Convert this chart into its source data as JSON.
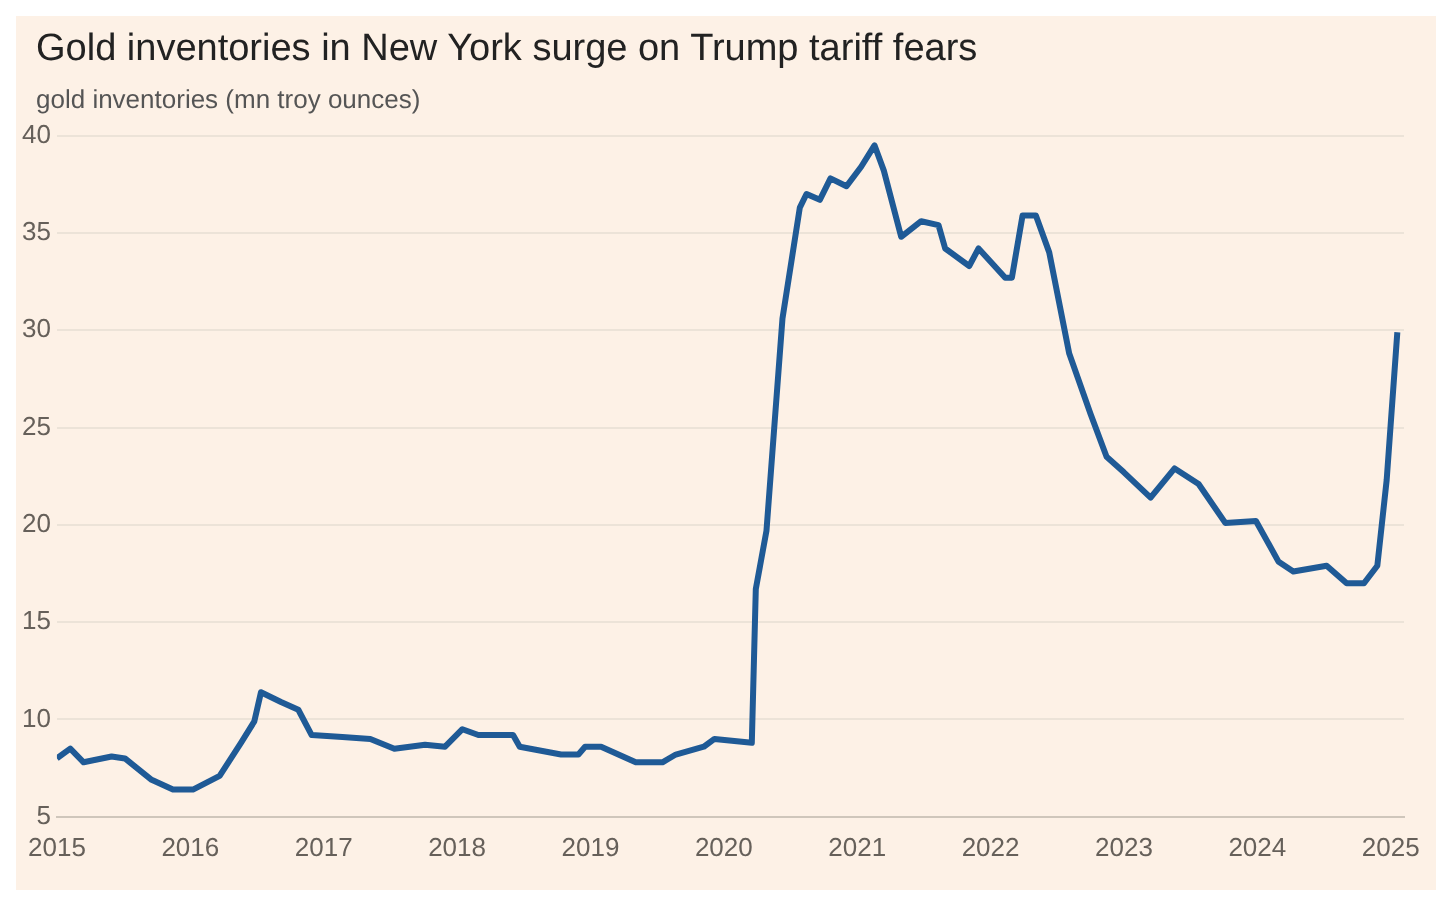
{
  "chart_data": {
    "type": "line",
    "title": "Gold inventories in New York surge on Trump tariff fears",
    "subtitle": "gold inventories (mn troy ounces)",
    "x": [
      2015.0,
      2015.1,
      2015.2,
      2015.41,
      2015.51,
      2015.71,
      2015.87,
      2016.02,
      2016.22,
      2016.38,
      2016.48,
      2016.53,
      2016.68,
      2016.81,
      2016.91,
      2017.14,
      2017.35,
      2017.53,
      2017.76,
      2017.91,
      2018.04,
      2018.16,
      2018.42,
      2018.47,
      2018.78,
      2018.91,
      2018.96,
      2019.08,
      2019.34,
      2019.54,
      2019.64,
      2019.85,
      2019.93,
      2020.21,
      2020.24,
      2020.32,
      2020.44,
      2020.57,
      2020.62,
      2020.72,
      2020.8,
      2020.92,
      2021.03,
      2021.13,
      2021.2,
      2021.33,
      2021.48,
      2021.61,
      2021.66,
      2021.84,
      2021.91,
      2022.11,
      2022.16,
      2022.24,
      2022.34,
      2022.44,
      2022.59,
      2022.75,
      2022.87,
      2023.0,
      2023.2,
      2023.38,
      2023.56,
      2023.76,
      2023.99,
      2024.16,
      2024.27,
      2024.52,
      2024.67,
      2024.8,
      2024.9,
      2024.97,
      2025.05
    ],
    "series": [
      {
        "color": "#1f5a96",
        "values": [
          8.0,
          8.5,
          7.8,
          8.1,
          8.0,
          6.9,
          6.4,
          6.4,
          7.1,
          8.8,
          9.9,
          11.4,
          10.9,
          10.5,
          9.2,
          9.1,
          9.0,
          8.5,
          8.7,
          8.6,
          9.5,
          9.2,
          9.2,
          8.6,
          8.2,
          8.2,
          8.6,
          8.6,
          7.8,
          7.8,
          8.2,
          8.6,
          9.0,
          8.8,
          16.7,
          19.7,
          30.6,
          36.3,
          37.0,
          36.7,
          37.8,
          37.4,
          38.4,
          39.5,
          38.2,
          34.8,
          35.6,
          35.4,
          34.2,
          33.3,
          34.2,
          32.7,
          32.7,
          35.9,
          35.9,
          34.0,
          28.8,
          25.7,
          23.5,
          22.7,
          21.4,
          22.9,
          22.1,
          20.1,
          20.2,
          18.1,
          17.6,
          17.9,
          17.0,
          17.0,
          17.9,
          22.3,
          29.9
        ]
      }
    ],
    "xlim": [
      2015,
      2025.1
    ],
    "xticks": [
      2015,
      2016,
      2017,
      2018,
      2019,
      2020,
      2021,
      2022,
      2023,
      2024,
      2025
    ],
    "ylim": [
      5,
      40
    ],
    "yticks": [
      5,
      10,
      15,
      20,
      25,
      30,
      35,
      40
    ],
    "grid": "y",
    "marker": "none",
    "line_style": "solid",
    "legend": false
  }
}
